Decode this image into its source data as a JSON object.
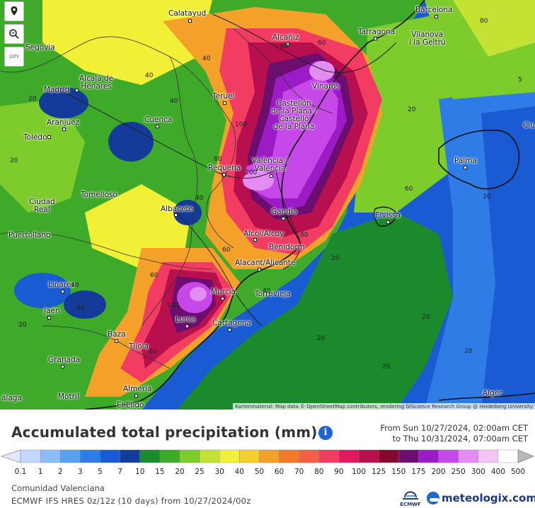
{
  "map": {
    "attribution": "Kartenmaterial: Map data © OpenStreetMap contributors, rendering GIScience Research Group @ Heidelberg University",
    "controls": {
      "locate_icon": "map-pin-icon",
      "zoom_icon": "magnifier-zoom-icon",
      "city_label": "CITY"
    },
    "places": [
      {
        "id": "calatayud",
        "name": "Calatayud"
      },
      {
        "id": "barcelona",
        "name": "Barcelona"
      },
      {
        "id": "segovia",
        "name": "Segovia"
      },
      {
        "id": "alcaniz",
        "name": "Alcañiz"
      },
      {
        "id": "tarragona",
        "name": "Tarragona"
      },
      {
        "id": "vilanova",
        "name": "Vilanova\ni la Geltrú"
      },
      {
        "id": "alcala",
        "name": "Alcalá de\nHenares"
      },
      {
        "id": "madrid",
        "name": "Madrid"
      },
      {
        "id": "teruel",
        "name": "Teruel"
      },
      {
        "id": "vinaros",
        "name": "Vinaròs"
      },
      {
        "id": "castellon",
        "name": "Castellón\nde la Plana /\nCastelló\nde la Plana"
      },
      {
        "id": "aranjuez",
        "name": "Aranjuez"
      },
      {
        "id": "cuenca",
        "name": "Cuenca"
      },
      {
        "id": "toledo",
        "name": "Toledo"
      },
      {
        "id": "ciutadella",
        "name": "Ciu"
      },
      {
        "id": "requena",
        "name": "Requena"
      },
      {
        "id": "valencia",
        "name": "València /\nValència"
      },
      {
        "id": "palma",
        "name": "Palma"
      },
      {
        "id": "tomelloso",
        "name": "Tomelloso"
      },
      {
        "id": "ciudadreal",
        "name": "Ciudad\nReal"
      },
      {
        "id": "albacete",
        "name": "Albacete"
      },
      {
        "id": "gandia",
        "name": "Gandia"
      },
      {
        "id": "eivissa",
        "name": "Eivissa"
      },
      {
        "id": "puertollano",
        "name": "Puertollano"
      },
      {
        "id": "alcoi",
        "name": "Alcoi/Alcoy"
      },
      {
        "id": "benidorm",
        "name": "Benidorm"
      },
      {
        "id": "alacant",
        "name": "Alacant/Alicante"
      },
      {
        "id": "linares",
        "name": "Linares"
      },
      {
        "id": "murcia",
        "name": "Murcia"
      },
      {
        "id": "torrevieja",
        "name": "Torrevieja"
      },
      {
        "id": "jaen",
        "name": "Jaén"
      },
      {
        "id": "lorca",
        "name": "Lorca"
      },
      {
        "id": "cartagena",
        "name": "Cartagena"
      },
      {
        "id": "baza",
        "name": "Baza"
      },
      {
        "id": "tijola",
        "name": "Tíjola"
      },
      {
        "id": "granada",
        "name": "Granada"
      },
      {
        "id": "almeria",
        "name": "Almería"
      },
      {
        "id": "motril",
        "name": "Motril"
      },
      {
        "id": "elejido",
        "name": "El Ejido"
      },
      {
        "id": "malaga",
        "name": "álaga"
      },
      {
        "id": "alger",
        "name": "Alger"
      }
    ],
    "contour_labels": [
      "80",
      "60",
      "80",
      "40",
      "20",
      "40",
      "40",
      "5",
      "20",
      "100",
      "60",
      "200",
      "40",
      "60",
      "20",
      "80",
      "60",
      "40",
      "60",
      "100",
      "80",
      "20",
      "20",
      "40",
      "40",
      "20",
      "20",
      "20",
      "20",
      "20"
    ]
  },
  "header": {
    "title": "Accumulated total precipitation (mm)",
    "info_icon": "info-icon",
    "period_from": "From Sun 10/27/2024, 02:00am CET",
    "period_to": "to Thu 10/31/2024, 07:00am CET"
  },
  "legend": {
    "values": [
      "0.1",
      "1",
      "2",
      "3",
      "5",
      "7",
      "10",
      "15",
      "20",
      "25",
      "30",
      "40",
      "50",
      "60",
      "70",
      "80",
      "90",
      "100",
      "125",
      "150",
      "175",
      "200",
      "250",
      "300",
      "400",
      "500"
    ],
    "colors": [
      "#e4e8ff",
      "#c2d6ff",
      "#8cbcfa",
      "#5aa0f0",
      "#2f7ce6",
      "#1a5ad2",
      "#143a9a",
      "#1a8a2c",
      "#3faa2a",
      "#7ecb2c",
      "#c4e234",
      "#f2f036",
      "#f5cf2a",
      "#f4a12a",
      "#f37a2b",
      "#f45f45",
      "#f23c62",
      "#e11a60",
      "#b8104e",
      "#85082f",
      "#6b0e6f",
      "#9b1cc7",
      "#c648e8",
      "#e38cf2",
      "#f3c6f8",
      "#ffffff",
      "#b9b9b9"
    ]
  },
  "footer": {
    "region": "Comunidad Valenciana",
    "model": "ECMWF IFS HRES 0z/12z (10 days) from 10/27/2024/00z",
    "ecmwf_logo": "ECMWF",
    "brand": "meteologix.com"
  }
}
